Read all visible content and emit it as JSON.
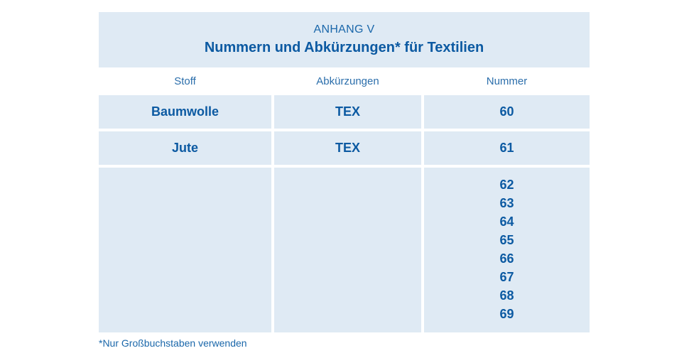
{
  "header": {
    "subtitle": "ANHANG V",
    "title": "Nummern und Abkürzungen* für Textilien"
  },
  "columns": [
    "Stoff",
    "Abkürzungen",
    "Nummer"
  ],
  "rows": [
    {
      "stoff": "Baumwolle",
      "abk": "TEX",
      "nummer": "60"
    },
    {
      "stoff": "Jute",
      "abk": "TEX",
      "nummer": "61"
    }
  ],
  "last_row": {
    "stoff": "",
    "abk": "",
    "numbers": [
      "62",
      "63",
      "64",
      "65",
      "66",
      "67",
      "68",
      "69"
    ]
  },
  "footnote": "*Nur Großbuchstaben verwenden",
  "colors": {
    "text_blue": "#0c5aa2",
    "cell_background": "#dfeaf4"
  }
}
